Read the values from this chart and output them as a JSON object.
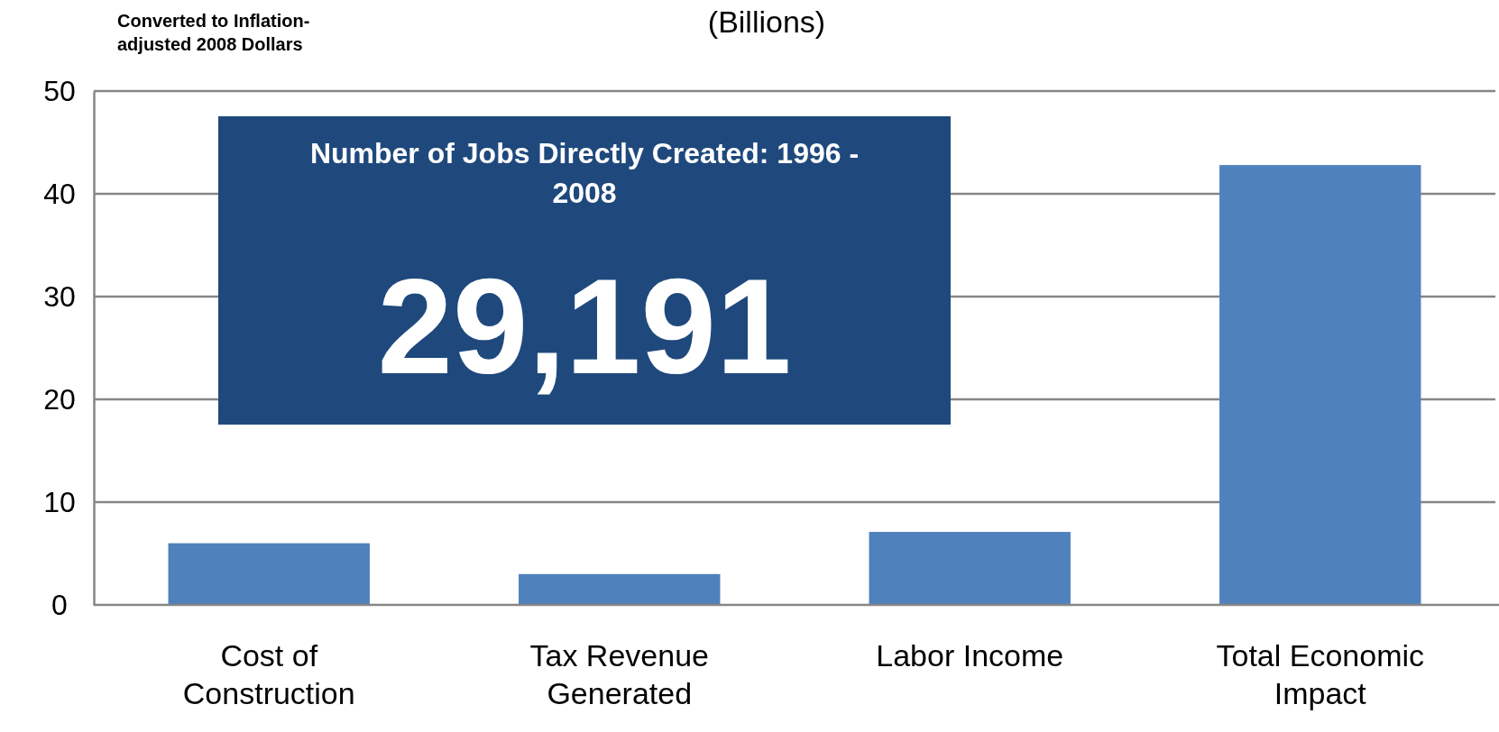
{
  "chart_data": {
    "type": "bar",
    "title": "(Billions)",
    "categories": [
      "Cost of Construction",
      "Tax Revenue Generated",
      "Labor Income",
      "Total Economic Impact"
    ],
    "values": [
      6.0,
      3.0,
      7.1,
      42.8
    ],
    "color": "#4f81bd",
    "ylim": [
      0,
      50
    ],
    "yticks": [
      0,
      10,
      20,
      30,
      40,
      50
    ],
    "grid": "y",
    "annotations": [
      "Converted to Inflation-adjusted 2008 Dollars",
      "Number of Jobs Directly Created: 1996 - 2008",
      "29,191"
    ]
  }
}
